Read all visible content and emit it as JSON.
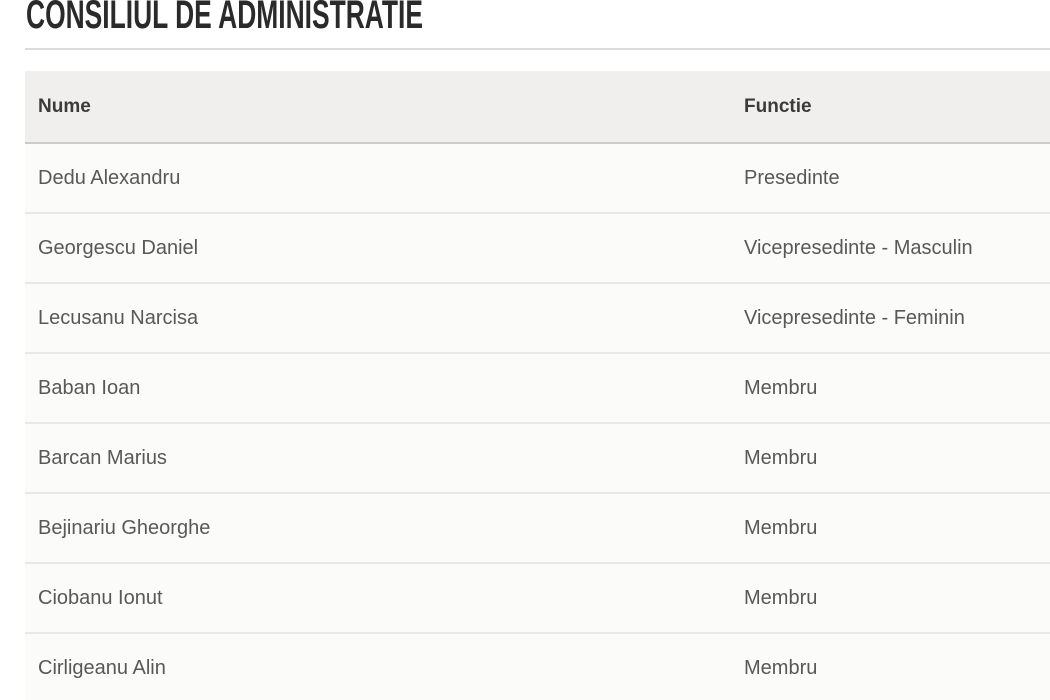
{
  "page": {
    "title": "CONSILIUL DE ADMINISTRATIE"
  },
  "table": {
    "columns": [
      {
        "key": "nume",
        "label": "Nume"
      },
      {
        "key": "functie",
        "label": "Functie"
      }
    ],
    "rows": [
      {
        "nume": "Dedu Alexandru",
        "functie": "Presedinte"
      },
      {
        "nume": "Georgescu Daniel",
        "functie": "Vicepresedinte - Masculin"
      },
      {
        "nume": "Lecusanu Narcisa",
        "functie": "Vicepresedinte - Feminin"
      },
      {
        "nume": "Baban Ioan",
        "functie": "Membru"
      },
      {
        "nume": "Barcan Marius",
        "functie": "Membru"
      },
      {
        "nume": "Bejinariu Gheorghe",
        "functie": "Membru"
      },
      {
        "nume": "Ciobanu Ionut",
        "functie": "Membru"
      },
      {
        "nume": "Cirligeanu Alin",
        "functie": "Membru"
      }
    ]
  },
  "theme": {
    "header_bg": "#f0efee",
    "header_text": "#3b3b3b",
    "header_border": "#cbcbcb",
    "row_bg": "#fbfbfa",
    "row_text": "#585858",
    "row_border": "#e9e9e8",
    "title_color": "#2a2a2a",
    "divider_color": "#dcdcdc"
  }
}
